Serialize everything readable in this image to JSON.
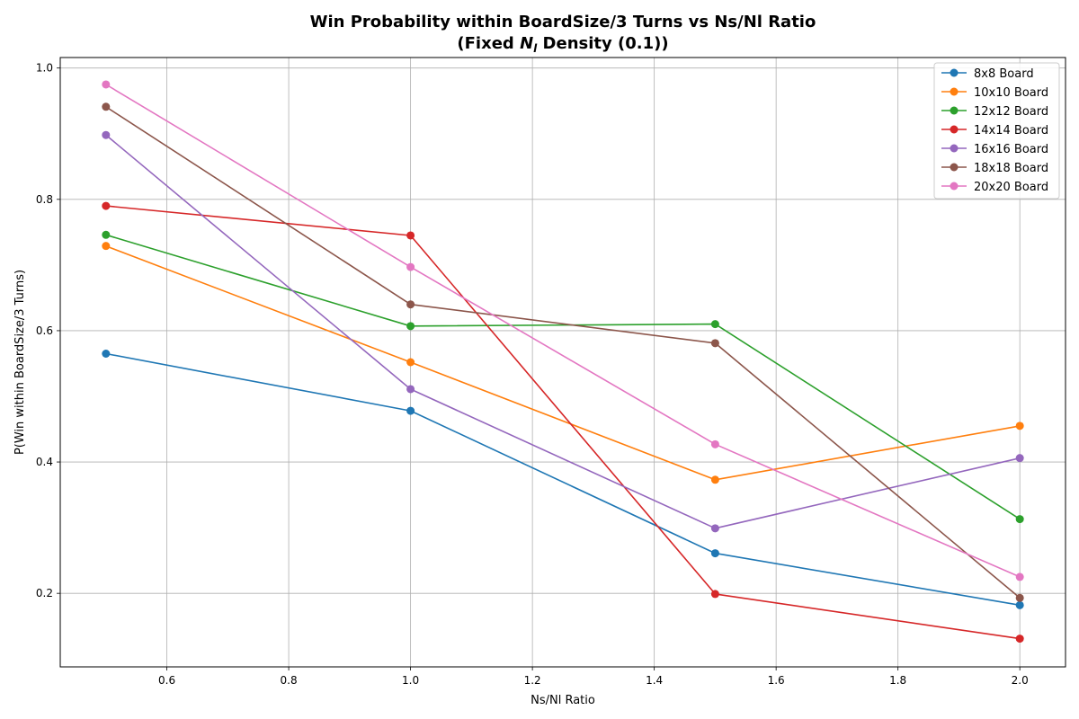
{
  "chart_data": {
    "type": "line",
    "title_line1": "Win Probability within BoardSize/3 Turns vs Ns/Nl Ratio",
    "title_line2_prefix": "(Fixed ",
    "title_line2_symbol": "N",
    "title_line2_subscript": "l",
    "title_line2_suffix": " Density (0.1))",
    "xlabel": "Ns/Nl Ratio",
    "ylabel": "P(Win within BoardSize/3 Turns)",
    "xlim": [
      0.425,
      2.075
    ],
    "ylim": [
      0.088,
      1.016
    ],
    "xticks": [
      0.6,
      0.8,
      1.0,
      1.2,
      1.4,
      1.6,
      1.8,
      2.0
    ],
    "xtick_labels": [
      "0.6",
      "0.8",
      "1.0",
      "1.2",
      "1.4",
      "1.6",
      "1.8",
      "2.0"
    ],
    "yticks": [
      0.2,
      0.4,
      0.6,
      0.8,
      1.0
    ],
    "ytick_labels": [
      "0.2",
      "0.4",
      "0.6",
      "0.8",
      "1.0"
    ],
    "grid": true,
    "legend_position": "top-right",
    "x": [
      0.5,
      1.0,
      1.5,
      2.0
    ],
    "series": [
      {
        "name": "8x8 Board",
        "color": "#1f77b4",
        "values": [
          0.565,
          0.478,
          0.261,
          0.182
        ]
      },
      {
        "name": "10x10 Board",
        "color": "#ff7f0e",
        "values": [
          0.729,
          0.552,
          0.373,
          0.455
        ]
      },
      {
        "name": "12x12 Board",
        "color": "#2ca02c",
        "values": [
          0.746,
          0.607,
          0.61,
          0.313
        ]
      },
      {
        "name": "14x14 Board",
        "color": "#d62728",
        "values": [
          0.79,
          0.745,
          0.199,
          0.131
        ]
      },
      {
        "name": "16x16 Board",
        "color": "#9467bd",
        "values": [
          0.898,
          0.511,
          0.299,
          0.406
        ]
      },
      {
        "name": "18x18 Board",
        "color": "#8c564b",
        "values": [
          0.941,
          0.64,
          0.581,
          0.193
        ]
      },
      {
        "name": "20x20 Board",
        "color": "#e377c2",
        "values": [
          0.975,
          0.697,
          0.427,
          0.225
        ]
      }
    ]
  }
}
